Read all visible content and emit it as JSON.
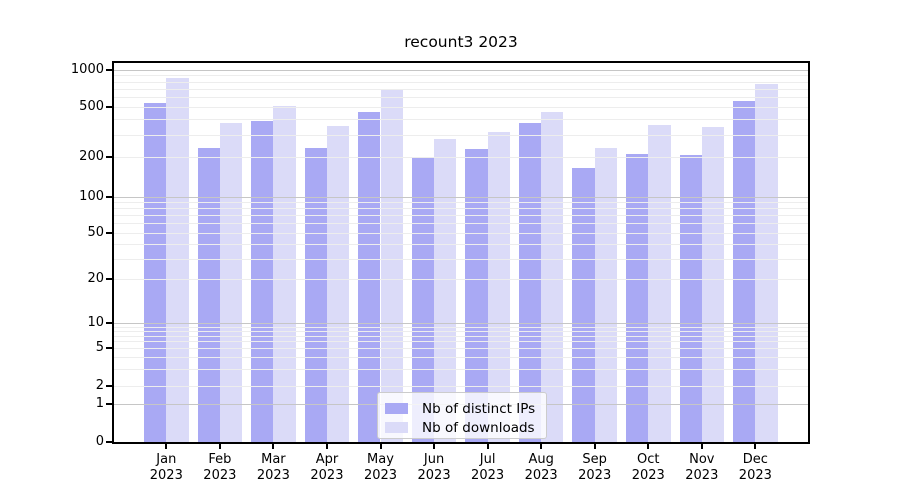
{
  "title": "recount3 2023",
  "legend": {
    "items": [
      {
        "label": "Nb of distinct IPs",
        "series": "ips"
      },
      {
        "label": "Nb of downloads",
        "series": "downloads"
      }
    ]
  },
  "colors": {
    "ips": "#a9a9f4",
    "downloads": "#dbdbf8",
    "grid_major": "#c6c6c6",
    "grid_minor": "#ededed",
    "spine": "#000000"
  },
  "chart_data": {
    "type": "bar",
    "title": "recount3 2023",
    "categories": [
      "Jan 2023",
      "Feb 2023",
      "Mar 2023",
      "Apr 2023",
      "May 2023",
      "Jun 2023",
      "Jul 2023",
      "Aug 2023",
      "Sep 2023",
      "Oct 2023",
      "Nov 2023",
      "Dec 2023"
    ],
    "series": [
      {
        "name": "Nb of distinct IPs",
        "color": "#a9a9f4",
        "values": [
          540,
          235,
          390,
          235,
          455,
          197,
          233,
          370,
          165,
          210,
          209,
          560
        ]
      },
      {
        "name": "Nb of downloads",
        "color": "#dbdbf8",
        "values": [
          860,
          370,
          505,
          355,
          700,
          280,
          315,
          455,
          235,
          360,
          345,
          760
        ]
      }
    ],
    "xlabel": "",
    "ylabel": "",
    "yscale": "symlog",
    "y_ticks": [
      0,
      1,
      2,
      5,
      10,
      20,
      50,
      100,
      200,
      500,
      1000
    ],
    "ylim": [
      0,
      1150
    ],
    "grid": true,
    "legend_position": "lower center"
  }
}
